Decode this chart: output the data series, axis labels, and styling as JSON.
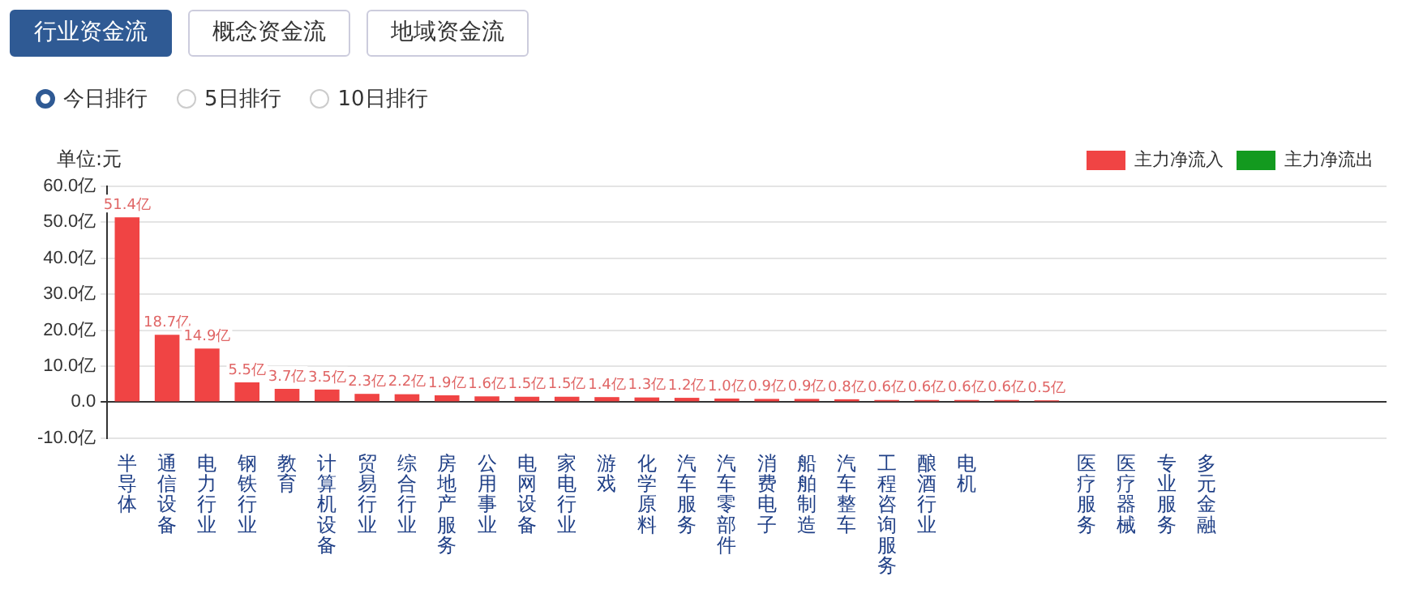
{
  "chart_data": {
    "type": "bar",
    "stacked": true,
    "ylabel": "单位:元",
    "annotations": [
      "行业资金流",
      "概念资金流",
      "地域资金流",
      "今日排行",
      "5日排行",
      "10日排行"
    ],
    "categories": [
      "半导体",
      "通信设备",
      "电力行业",
      "钢铁行业",
      "教育",
      "计算机设备",
      "贸易行业",
      "综合行业",
      "房地产服务",
      "公用事业",
      "电网设备",
      "家电行业",
      "游戏",
      "化学原料",
      "汽车服务",
      "汽车零部件",
      "消费电子",
      "船舶制造",
      "汽车整车",
      "工程咨询服务",
      "酿酒行业",
      "电机",
      null,
      null,
      "医疗服务",
      "医疗器械",
      "专业服务",
      "多元金融",
      null,
      null,
      null,
      null
    ],
    "series": [
      {
        "name": "主力净流入",
        "color": "#f04444",
        "values": [
          51.4,
          18.7,
          14.9,
          5.5,
          3.7,
          3.5,
          2.3,
          2.2,
          1.9,
          1.6,
          1.5,
          1.5,
          1.4,
          1.3,
          1.2,
          1.0,
          0.9,
          0.9,
          0.8,
          0.6,
          0.6,
          0.6,
          0.6,
          0.5,
          null,
          null,
          null,
          null,
          null,
          null,
          null,
          null
        ],
        "value_labels": [
          "51.4亿",
          "18.7亿",
          "14.9亿",
          "5.5亿",
          "3.7亿",
          "3.5亿",
          "2.3亿",
          "2.2亿",
          "1.9亿",
          "1.6亿",
          "1.5亿",
          "1.5亿",
          "1.4亿",
          "1.3亿",
          "1.2亿",
          "1.0亿",
          "0.9亿",
          "0.9亿",
          "0.8亿",
          "0.6亿",
          "0.6亿",
          "0.6亿",
          "0.6亿",
          "0.5亿",
          null,
          null,
          null,
          null,
          null,
          null,
          null,
          null
        ]
      },
      {
        "name": "主力净流出",
        "color": "#139a1f",
        "values": [
          null,
          null,
          null,
          null,
          null,
          null,
          null,
          null,
          null,
          null,
          null,
          null,
          null,
          null,
          null,
          null,
          null,
          null,
          null,
          null,
          null,
          null,
          null,
          null,
          null,
          null,
          null,
          null,
          null,
          null,
          null,
          null
        ]
      }
    ],
    "ylim": [
      -10,
      60
    ],
    "yticks": [
      {
        "value": -10,
        "label": "-10.0亿"
      },
      {
        "value": 0,
        "label": "0.0"
      },
      {
        "value": 10,
        "label": "10.0亿"
      },
      {
        "value": 20,
        "label": "20.0亿"
      },
      {
        "value": 30,
        "label": "30.0亿"
      },
      {
        "value": 40,
        "label": "40.0亿"
      },
      {
        "value": 50,
        "label": "50.0亿"
      },
      {
        "value": 60,
        "label": "60.0亿"
      }
    ],
    "grid": "y",
    "legend": "top right"
  }
}
